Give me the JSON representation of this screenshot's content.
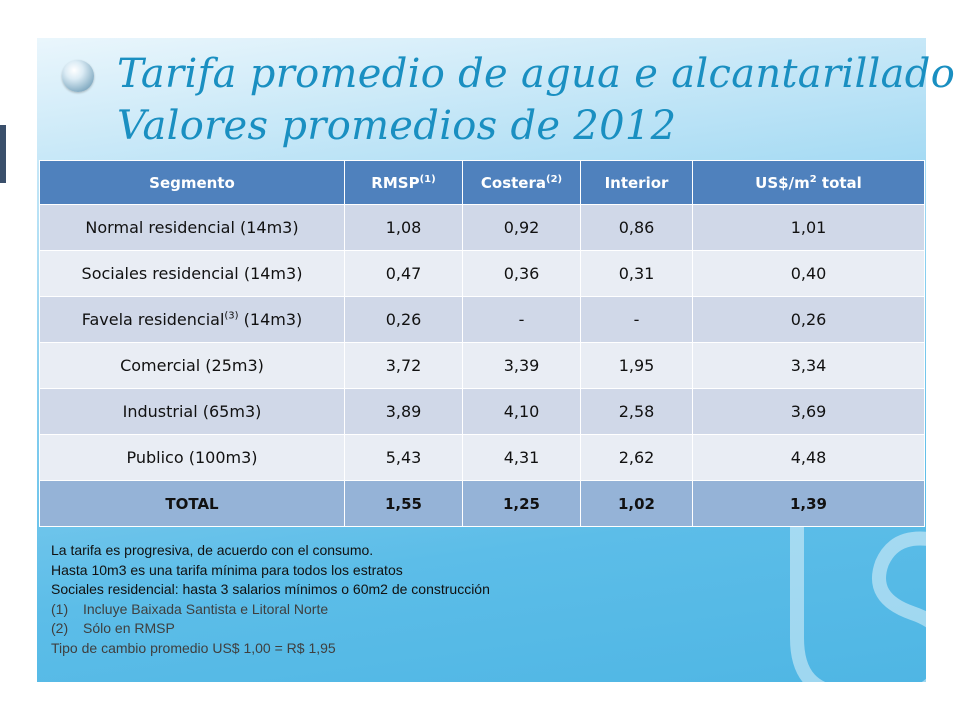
{
  "title": {
    "line1": "Tarifa promedio de agua e alcantarillado",
    "line2": "Valores promedios de 2012"
  },
  "table": {
    "headers": [
      {
        "text": "Segmento",
        "sup": ""
      },
      {
        "text": "RMSP",
        "sup": "(1)"
      },
      {
        "text": "Costera",
        "sup": "(2)"
      },
      {
        "text": "Interior",
        "sup": ""
      },
      {
        "text": "US$/m",
        "sup": "2",
        "after": " total"
      }
    ],
    "rows": [
      {
        "segment": "Normal residencial (14m3)",
        "segment_sup": "",
        "segment_after": "",
        "rmsp": "1,08",
        "costera": "0,92",
        "interior": "0,86",
        "total": "1,01"
      },
      {
        "segment": "Sociales residencial  (14m3)",
        "segment_sup": "",
        "segment_after": "",
        "rmsp": "0,47",
        "costera": "0,36",
        "interior": "0,31",
        "total": "0,40"
      },
      {
        "segment": "Favela  residencial",
        "segment_sup": "(3)",
        "segment_after": " (14m3)",
        "rmsp": "0,26",
        "costera": "-",
        "interior": "-",
        "total": "0,26"
      },
      {
        "segment": "Comercial (25m3)",
        "segment_sup": "",
        "segment_after": "",
        "rmsp": "3,72",
        "costera": "3,39",
        "interior": "1,95",
        "total": "3,34"
      },
      {
        "segment": "Industrial (65m3)",
        "segment_sup": "",
        "segment_after": "",
        "rmsp": "3,89",
        "costera": "4,10",
        "interior": "2,58",
        "total": "3,69"
      },
      {
        "segment": "Publico (100m3)",
        "segment_sup": "",
        "segment_after": "",
        "rmsp": "5,43",
        "costera": "4,31",
        "interior": "2,62",
        "total": "4,48"
      }
    ],
    "total": {
      "segment": "TOTAL",
      "rmsp": "1,55",
      "costera": "1,25",
      "interior": "1,02",
      "total": "1,39"
    }
  },
  "notes": {
    "line1": "La tarifa es progresiva, de acuerdo con el consumo.",
    "line2": "Hasta 10m3 es una tarifa mínima para todos los estratos",
    "line3": "Sociales residencial: hasta 3 salarios mínimos o 60m2 de construcción",
    "footnote1_num": "(1)",
    "footnote1": "Incluye Baixada Santista e Litoral Norte",
    "footnote2_num": "(2)",
    "footnote2": "Sólo en RMSP",
    "exchange": "Tipo de cambio promedio US$ 1,00 = R$ 1,95"
  },
  "colors": {
    "header_bg": "#4f81bd",
    "row_odd": "#d0d8e8",
    "row_even": "#e9edf4",
    "total_bg": "#95b3d7",
    "title": "#1a8fc1"
  },
  "icons": {
    "bullet": "glossy-orb-bullet-icon",
    "logo": "company-logo-watermark"
  }
}
